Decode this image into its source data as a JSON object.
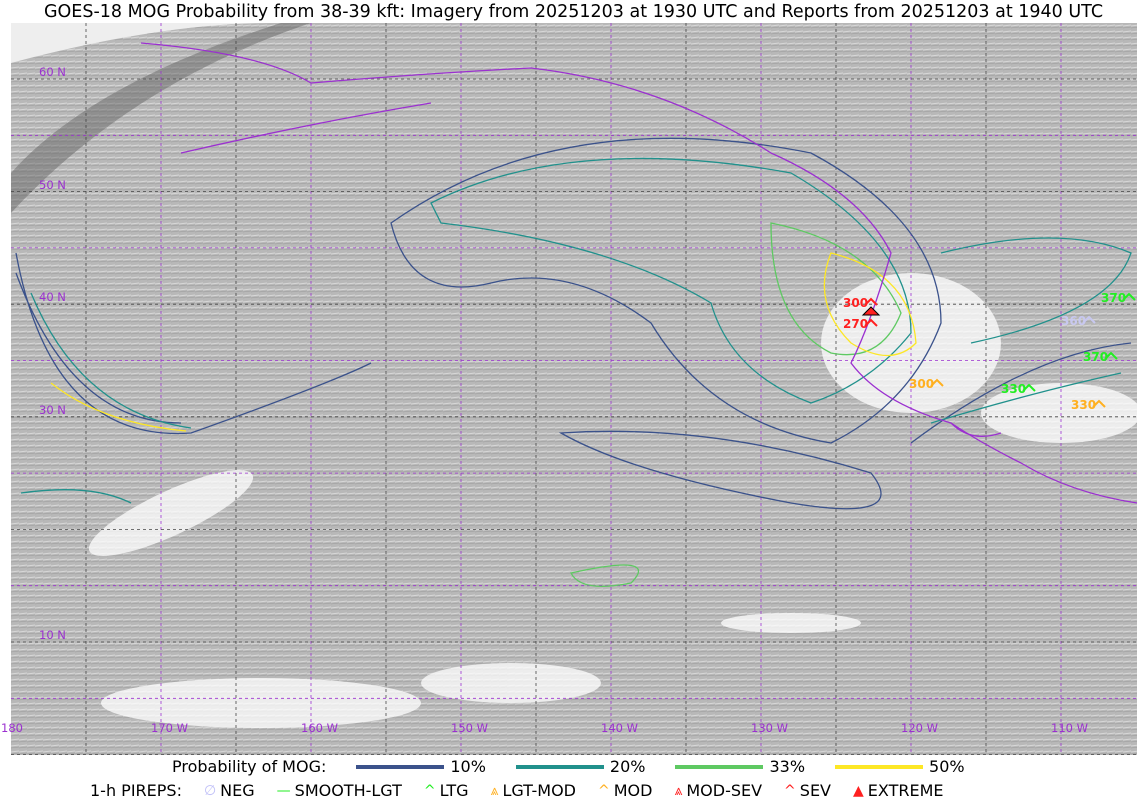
{
  "title": "GOES-18 MOG Probability from 38-39 kft: Imagery from 20251203 at 1930 UTC and Reports from 20251203 at 1940 UTC",
  "map": {
    "lon_labels": [
      "180",
      "170 W",
      "160 W",
      "150 W",
      "140 W",
      "130 W",
      "120 W",
      "110 W"
    ],
    "lat_labels": [
      "60 N",
      "50 N",
      "40 N",
      "30 N",
      "10 N"
    ],
    "grid_color": "#9b30d0",
    "coast_color": "#9b30d0",
    "pireps": [
      {
        "label": "300",
        "color": "#ff2020"
      },
      {
        "label": "270",
        "color": "#ff2020"
      },
      {
        "label": "300",
        "color": "#ffb020"
      },
      {
        "label": "330",
        "color": "#22ee22"
      },
      {
        "label": "330",
        "color": "#ffb020"
      },
      {
        "label": "370",
        "color": "#22ee22"
      },
      {
        "label": "370",
        "color": "#22ee22"
      },
      {
        "label": "360",
        "color": "#c8c8f0"
      }
    ]
  },
  "legend": {
    "prob_title": "Probability of MOG:",
    "prob": [
      {
        "label": "10%",
        "color": "#3b528b"
      },
      {
        "label": "20%",
        "color": "#21918c"
      },
      {
        "label": "33%",
        "color": "#5ec962"
      },
      {
        "label": "50%",
        "color": "#fde725"
      }
    ],
    "pirep_title": "1-h PIREPS:",
    "pireps": [
      {
        "label": "NEG",
        "color": "#c0c0f8",
        "icon": "∅"
      },
      {
        "label": "SMOOTH-LGT",
        "color": "#22ee22",
        "icon": "—"
      },
      {
        "label": "LTG",
        "color": "#22ee22",
        "icon": "^"
      },
      {
        "label": "LGT-MOD",
        "color": "#ffb020",
        "icon": "⩓"
      },
      {
        "label": "MOD",
        "color": "#ffb020",
        "icon": "^"
      },
      {
        "label": "MOD-SEV",
        "color": "#ff2020",
        "icon": "⩓"
      },
      {
        "label": "SEV",
        "color": "#ff2020",
        "icon": "^"
      },
      {
        "label": "EXTREME",
        "color": "#ff2020",
        "icon": "▲"
      }
    ]
  }
}
